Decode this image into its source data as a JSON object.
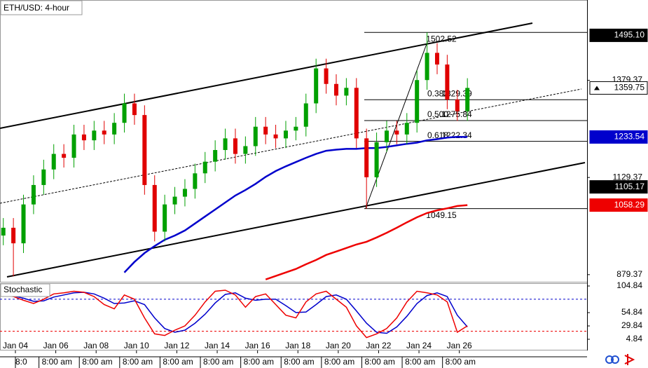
{
  "chart_data": [
    {
      "type": "candlestick",
      "title": "ETH/USD: 4-hour",
      "x": [
        3.4,
        3.9,
        4.4,
        4.9,
        5.4,
        5.9,
        6.4,
        6.9,
        7.4,
        7.9,
        8.4,
        8.9,
        9.4,
        9.9,
        10.4,
        10.9,
        11.4,
        11.9,
        12.4,
        12.9,
        13.4,
        13.9,
        14.4,
        14.9,
        15.4,
        15.9,
        16.4,
        16.9,
        17.4,
        17.9,
        18.4,
        18.9,
        19.4,
        19.9,
        20.4,
        20.9,
        21.4,
        21.9,
        22.4,
        22.9,
        23.4,
        23.9,
        24.4,
        24.9,
        25.4,
        25.9,
        26.4
      ],
      "open": [
        980,
        1000,
        960,
        1060,
        1110,
        1150,
        1190,
        1180,
        1240,
        1225,
        1250,
        1240,
        1270,
        1320,
        1290,
        1110,
        990,
        1060,
        1080,
        1100,
        1140,
        1170,
        1200,
        1230,
        1190,
        1210,
        1260,
        1240,
        1230,
        1250,
        1260,
        1320,
        1410,
        1370,
        1340,
        1360,
        1230,
        1130,
        1220,
        1250,
        1240,
        1270,
        1380,
        1450,
        1420,
        1330,
        1300
      ],
      "high": [
        1025,
        1025,
        1085,
        1135,
        1175,
        1215,
        1215,
        1265,
        1265,
        1275,
        1275,
        1295,
        1345,
        1345,
        1315,
        1135,
        1085,
        1105,
        1125,
        1165,
        1195,
        1225,
        1255,
        1255,
        1235,
        1285,
        1285,
        1265,
        1275,
        1285,
        1345,
        1435,
        1435,
        1395,
        1385,
        1385,
        1255,
        1245,
        1275,
        1275,
        1295,
        1405,
        1502.52,
        1475,
        1445,
        1355,
        1384.75
      ],
      "low": [
        955,
        875,
        935,
        1035,
        1085,
        1125,
        1155,
        1155,
        1200,
        1200,
        1215,
        1215,
        1245,
        1265,
        1085,
        965,
        965,
        1035,
        1055,
        1075,
        1115,
        1145,
        1175,
        1165,
        1165,
        1185,
        1215,
        1205,
        1205,
        1225,
        1235,
        1295,
        1345,
        1315,
        1315,
        1205,
        1049.15,
        1105,
        1195,
        1215,
        1215,
        1245,
        1355,
        1395,
        1305,
        1275,
        1275
      ],
      "close": [
        1000,
        960,
        1060,
        1110,
        1150,
        1190,
        1180,
        1240,
        1225,
        1250,
        1240,
        1270,
        1320,
        1290,
        1110,
        990,
        1060,
        1080,
        1100,
        1140,
        1170,
        1200,
        1230,
        1190,
        1210,
        1260,
        1240,
        1230,
        1250,
        1260,
        1320,
        1410,
        1370,
        1340,
        1360,
        1230,
        1130,
        1220,
        1250,
        1240,
        1270,
        1380,
        1450,
        1420,
        1330,
        1300,
        1359.75
      ],
      "up_color": "#00a000",
      "down_color": "#e00000",
      "series": [
        {
          "color": "#0000cc",
          "values": [
            null,
            null,
            null,
            null,
            null,
            null,
            null,
            null,
            null,
            null,
            null,
            null,
            885,
            912,
            935,
            953,
            969,
            980,
            993,
            1011,
            1029,
            1047,
            1065,
            1083,
            1097,
            1113,
            1131,
            1146,
            1158,
            1169,
            1180,
            1190,
            1198,
            1201,
            1203,
            1203,
            1205,
            1205,
            1208,
            1212,
            1216,
            1219,
            1225,
            1228,
            1232,
            1234,
            1233.54
          ]
        },
        {
          "color": "#ee0000",
          "values": [
            null,
            null,
            null,
            null,
            null,
            null,
            null,
            null,
            null,
            null,
            null,
            null,
            null,
            null,
            null,
            null,
            null,
            null,
            null,
            null,
            null,
            null,
            null,
            null,
            null,
            null,
            867,
            876,
            885,
            894,
            906,
            917,
            930,
            939,
            948,
            957,
            964,
            975,
            987,
            1000,
            1014,
            1027,
            1038,
            1045,
            1050,
            1056,
            1058.29
          ]
        }
      ],
      "xlim": [
        3.236,
        32.33
      ],
      "ylim": [
        861,
        1586
      ],
      "yticks": [
        879.37,
        1129.37,
        1379.37
      ],
      "xticks": [
        {
          "value": 4,
          "label": "Jan 04"
        },
        {
          "value": 6,
          "label": "Jan 06"
        },
        {
          "value": 8,
          "label": "Jan 08"
        },
        {
          "value": 10,
          "label": "Jan 10"
        },
        {
          "value": 12,
          "label": "Jan 12"
        },
        {
          "value": 14,
          "label": "Jan 14"
        },
        {
          "value": 16,
          "label": "Jan 16"
        },
        {
          "value": 18,
          "label": "Jan 18"
        },
        {
          "value": 20,
          "label": "Jan 20"
        },
        {
          "value": 22,
          "label": "Jan 22"
        },
        {
          "value": 24,
          "label": "Jan 24"
        },
        {
          "value": 26,
          "label": "Jan 26"
        }
      ],
      "time_labels": [
        "8:0",
        "8:00 am",
        "8:00 am",
        "8:00 am",
        "8:00 am",
        "8:00 am",
        "8:00 am",
        "8:00 am",
        "8:00 am",
        "8:00 am",
        "8:00 am",
        "8:00 am"
      ],
      "fib_levels": [
        {
          "ratio": null,
          "value": 1502.52
        },
        {
          "ratio": "0.382",
          "value": 1329.39
        },
        {
          "ratio": "0.500",
          "value": 1275.84
        },
        {
          "ratio": "0.618",
          "value": 1222.34
        },
        {
          "ratio": null,
          "value": 1049.15
        }
      ],
      "price_tags": [
        {
          "value": 1495.1,
          "label": "1495.10",
          "bg": "#000000",
          "fg": "#ffffff"
        },
        {
          "value": 1359.75,
          "label": "1359.75",
          "bg": "#ffffff",
          "fg": "#000000"
        },
        {
          "value": 1233.54,
          "label": "1233.54",
          "bg": "#0000cc",
          "fg": "#ffffff"
        },
        {
          "value": 1105.17,
          "label": "1105.17",
          "bg": "#000000",
          "fg": "#ffffff"
        },
        {
          "value": 1058.29,
          "label": "1058.29",
          "bg": "#ee0000",
          "fg": "#ffffff"
        }
      ]
    },
    {
      "type": "line",
      "title": "Stochastic",
      "series": [
        {
          "color": "#0000cc",
          "values": [
            86,
            86,
            82,
            76,
            77,
            84,
            88,
            92,
            93,
            90,
            82,
            72,
            73,
            77,
            70,
            45,
            25,
            18,
            22,
            35,
            52,
            73,
            89,
            92,
            82,
            78,
            80,
            80,
            68,
            55,
            56,
            70,
            85,
            88,
            80,
            58,
            35,
            18,
            16,
            28,
            48,
            72,
            87,
            92,
            85,
            50,
            28
          ]
        },
        {
          "color": "#ee0000",
          "values": [
            88,
            85,
            78,
            72,
            80,
            90,
            92,
            95,
            93,
            85,
            70,
            62,
            88,
            80,
            45,
            15,
            12,
            22,
            30,
            50,
            75,
            95,
            97,
            88,
            65,
            85,
            90,
            70,
            50,
            45,
            75,
            90,
            95,
            80,
            65,
            30,
            8,
            15,
            25,
            45,
            75,
            95,
            92,
            88,
            75,
            18,
            30
          ]
        }
      ],
      "ylim": [
        -16.2,
        110.1
      ],
      "yticks": [
        104.84,
        54.84,
        29.84,
        4.84
      ],
      "levels": [
        {
          "value": 80,
          "color": "#0000cc"
        },
        {
          "value": 20,
          "color": "#ee0000"
        }
      ]
    }
  ]
}
